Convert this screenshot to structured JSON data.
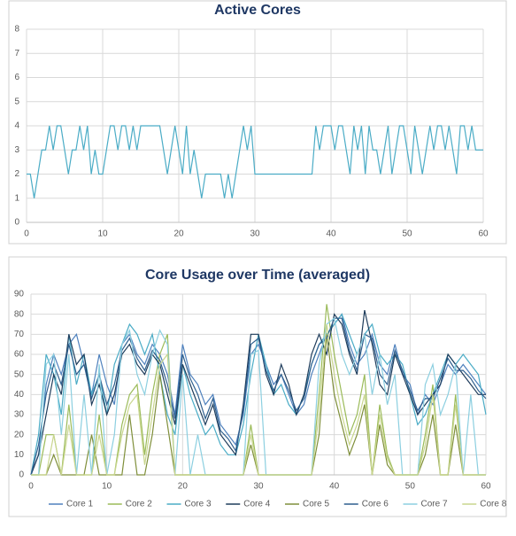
{
  "chart_data": [
    {
      "type": "line",
      "title": "Active Cores",
      "x": [
        0,
        0.5,
        1,
        1.5,
        2,
        2.5,
        3,
        3.5,
        4,
        4.5,
        5,
        5.5,
        6,
        6.5,
        7,
        7.5,
        8,
        8.5,
        9,
        9.5,
        10,
        10.5,
        11,
        11.5,
        12,
        12.5,
        13,
        13.5,
        14,
        14.5,
        15,
        15.5,
        16,
        16.5,
        17,
        17.5,
        18,
        18.5,
        19,
        19.5,
        20,
        20.5,
        21,
        21.5,
        22,
        22.5,
        23,
        23.5,
        24,
        24.5,
        25,
        25.5,
        26,
        26.5,
        27,
        27.5,
        28,
        28.5,
        29,
        29.5,
        30,
        30.5,
        31,
        31.5,
        32,
        32.5,
        33,
        33.5,
        34,
        34.5,
        35,
        35.5,
        36,
        36.5,
        37,
        37.5,
        38,
        38.5,
        39,
        39.5,
        40,
        40.5,
        41,
        41.5,
        42,
        42.5,
        43,
        43.5,
        44,
        44.5,
        45,
        45.5,
        46,
        46.5,
        47,
        47.5,
        48,
        48.5,
        49,
        49.5,
        50,
        50.5,
        51,
        51.5,
        52,
        52.5,
        53,
        53.5,
        54,
        54.5,
        55,
        55.5,
        56,
        56.5,
        57,
        57.5,
        58,
        58.5,
        59,
        59.5,
        60
      ],
      "values": [
        2,
        2,
        1,
        2,
        3,
        3,
        4,
        3,
        4,
        4,
        3,
        2,
        3,
        3,
        4,
        3,
        4,
        2,
        3,
        2,
        2,
        3,
        4,
        4,
        3,
        4,
        4,
        3,
        4,
        3,
        4,
        4,
        4,
        4,
        4,
        4,
        3,
        2,
        3,
        4,
        3,
        2,
        4,
        2,
        3,
        2,
        1,
        2,
        2,
        2,
        2,
        2,
        1,
        2,
        1,
        2,
        3,
        4,
        3,
        4,
        2,
        2,
        2,
        2,
        2,
        2,
        2,
        2,
        2,
        2,
        2,
        2,
        2,
        2,
        2,
        2,
        4,
        3,
        4,
        4,
        4,
        3,
        4,
        4,
        3,
        2,
        4,
        3,
        4,
        2,
        4,
        3,
        3,
        2,
        3,
        4,
        2,
        3,
        4,
        4,
        3,
        2,
        4,
        3,
        2,
        3,
        4,
        3,
        4,
        4,
        3,
        4,
        3,
        2,
        4,
        4,
        3,
        4,
        3,
        3,
        3
      ],
      "color": "#4bacc6",
      "xlim": [
        0,
        60
      ],
      "xticks": [
        0,
        10,
        20,
        30,
        40,
        50,
        60
      ],
      "ylim": [
        0,
        8
      ],
      "yticks": [
        0,
        1,
        2,
        3,
        4,
        5,
        6,
        7,
        8
      ],
      "grid": true
    },
    {
      "type": "line",
      "title": "Core Usage over Time (averaged)",
      "x": [
        0,
        1,
        2,
        3,
        4,
        5,
        6,
        7,
        8,
        9,
        10,
        11,
        12,
        13,
        14,
        15,
        16,
        17,
        18,
        19,
        20,
        21,
        22,
        23,
        24,
        25,
        26,
        27,
        28,
        29,
        30,
        31,
        32,
        33,
        34,
        35,
        36,
        37,
        38,
        39,
        40,
        41,
        42,
        43,
        44,
        45,
        46,
        47,
        48,
        49,
        50,
        51,
        52,
        53,
        54,
        55,
        56,
        57,
        58,
        59,
        60
      ],
      "series": [
        {
          "name": "Core 1",
          "color": "#4f81bd",
          "values": [
            0,
            10,
            45,
            60,
            50,
            65,
            70,
            55,
            40,
            60,
            45,
            35,
            65,
            70,
            60,
            55,
            65,
            60,
            50,
            30,
            65,
            50,
            45,
            35,
            40,
            25,
            20,
            15,
            30,
            60,
            65,
            55,
            45,
            50,
            40,
            30,
            35,
            50,
            60,
            70,
            75,
            80,
            65,
            55,
            60,
            70,
            55,
            50,
            65,
            50,
            45,
            30,
            40,
            35,
            45,
            55,
            50,
            55,
            50,
            45,
            40
          ]
        },
        {
          "name": "Core 2",
          "color": "#9bbb59",
          "values": [
            0,
            0,
            20,
            20,
            0,
            35,
            0,
            0,
            0,
            30,
            0,
            0,
            25,
            40,
            45,
            10,
            40,
            60,
            70,
            0,
            0,
            0,
            0,
            0,
            0,
            0,
            0,
            0,
            0,
            25,
            0,
            0,
            0,
            0,
            0,
            0,
            0,
            0,
            40,
            85,
            60,
            40,
            20,
            30,
            50,
            0,
            35,
            10,
            0,
            0,
            0,
            0,
            20,
            45,
            0,
            0,
            40,
            0,
            0,
            0,
            0
          ]
        },
        {
          "name": "Core 3",
          "color": "#4bacc6",
          "values": [
            0,
            20,
            60,
            50,
            30,
            70,
            45,
            60,
            40,
            50,
            30,
            55,
            65,
            75,
            70,
            60,
            70,
            50,
            30,
            20,
            55,
            40,
            30,
            20,
            25,
            15,
            10,
            10,
            25,
            50,
            70,
            55,
            40,
            45,
            35,
            30,
            40,
            55,
            65,
            70,
            75,
            80,
            70,
            60,
            70,
            75,
            60,
            55,
            60,
            55,
            40,
            25,
            30,
            40,
            50,
            60,
            55,
            60,
            55,
            50,
            30
          ]
        },
        {
          "name": "Core 4",
          "color": "#1f3d5c",
          "values": [
            0,
            10,
            30,
            50,
            40,
            70,
            55,
            60,
            35,
            45,
            30,
            40,
            60,
            65,
            55,
            50,
            60,
            55,
            40,
            25,
            55,
            45,
            35,
            25,
            35,
            20,
            15,
            10,
            35,
            70,
            70,
            50,
            40,
            55,
            45,
            30,
            40,
            60,
            70,
            60,
            80,
            75,
            60,
            50,
            82,
            65,
            45,
            40,
            60,
            50,
            40,
            30,
            35,
            40,
            45,
            60,
            55,
            50,
            45,
            40,
            40
          ]
        },
        {
          "name": "Core 5",
          "color": "#7f8f3a",
          "values": [
            0,
            0,
            0,
            10,
            0,
            0,
            0,
            0,
            20,
            0,
            0,
            0,
            0,
            30,
            0,
            0,
            20,
            50,
            25,
            0,
            0,
            0,
            0,
            0,
            0,
            0,
            0,
            0,
            0,
            15,
            0,
            0,
            0,
            0,
            0,
            0,
            0,
            0,
            20,
            70,
            40,
            25,
            10,
            20,
            35,
            0,
            25,
            5,
            0,
            0,
            0,
            0,
            10,
            30,
            0,
            0,
            25,
            0,
            0,
            0,
            0
          ]
        },
        {
          "name": "Core 6",
          "color": "#2e5f8e",
          "values": [
            0,
            15,
            40,
            55,
            45,
            65,
            50,
            55,
            38,
            50,
            35,
            45,
            62,
            68,
            58,
            52,
            62,
            57,
            45,
            28,
            60,
            48,
            40,
            28,
            38,
            22,
            18,
            12,
            32,
            65,
            68,
            52,
            42,
            50,
            42,
            32,
            38,
            55,
            65,
            68,
            78,
            78,
            62,
            52,
            70,
            68,
            50,
            45,
            62,
            52,
            42,
            32,
            38,
            38,
            48,
            58,
            52,
            52,
            48,
            42,
            38
          ]
        },
        {
          "name": "Core 7",
          "color": "#8ccfe0",
          "values": [
            0,
            0,
            55,
            60,
            20,
            60,
            0,
            40,
            0,
            55,
            0,
            20,
            65,
            72,
            50,
            40,
            60,
            72,
            65,
            0,
            50,
            0,
            20,
            0,
            0,
            0,
            0,
            0,
            0,
            60,
            62,
            0,
            0,
            0,
            0,
            0,
            0,
            0,
            55,
            75,
            78,
            60,
            50,
            60,
            70,
            40,
            60,
            35,
            50,
            0,
            0,
            0,
            45,
            55,
            30,
            40,
            55,
            0,
            40,
            0,
            0
          ]
        },
        {
          "name": "Core 8",
          "color": "#c9d68e",
          "values": [
            0,
            0,
            0,
            20,
            0,
            25,
            0,
            0,
            0,
            20,
            0,
            0,
            20,
            35,
            40,
            5,
            30,
            55,
            60,
            0,
            0,
            0,
            0,
            0,
            0,
            0,
            0,
            0,
            0,
            20,
            0,
            0,
            0,
            0,
            0,
            0,
            0,
            0,
            30,
            75,
            50,
            30,
            15,
            25,
            40,
            0,
            30,
            8,
            0,
            0,
            0,
            0,
            15,
            40,
            0,
            0,
            35,
            0,
            0,
            0,
            0
          ]
        }
      ],
      "xlim": [
        0,
        60
      ],
      "xticks": [
        0,
        10,
        20,
        30,
        40,
        50,
        60
      ],
      "ylim": [
        0,
        90
      ],
      "yticks": [
        0,
        10,
        20,
        30,
        40,
        50,
        60,
        70,
        80,
        90
      ],
      "grid": true,
      "legend": "bottom"
    }
  ]
}
